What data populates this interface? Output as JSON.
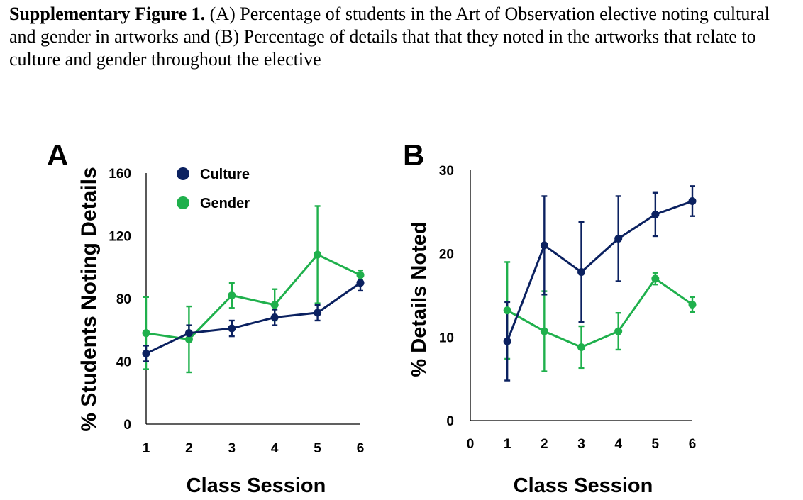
{
  "caption": {
    "label": "Supplementary Figure 1.",
    "text": " (A) Percentage of students in the Art of Observation elective noting cultural and gender in artworks and (B) Percentage of details that that they noted in the artworks that relate to culture and gender throughout the elective"
  },
  "colors": {
    "culture": "#0b2160",
    "gender": "#1fb04c"
  },
  "chart_data": [
    {
      "type": "line",
      "panel": "A",
      "xlabel": "Class Session",
      "ylabel": "% Students Noting Details",
      "x": [
        1,
        2,
        3,
        4,
        5,
        6
      ],
      "xticks": [
        "1",
        "2",
        "3",
        "4",
        "5",
        "6"
      ],
      "xlim": [
        1,
        6
      ],
      "yticks": [
        "0",
        "40",
        "80",
        "120",
        "160"
      ],
      "ylim": [
        0,
        160
      ],
      "legend": "top-left",
      "series": [
        {
          "name": "Culture",
          "color": "#0b2160",
          "values": [
            45,
            58,
            61,
            68,
            71,
            90
          ],
          "err": [
            5,
            5,
            5,
            5,
            5,
            5
          ]
        },
        {
          "name": "Gender",
          "color": "#1fb04c",
          "values": [
            58,
            54,
            82,
            76,
            108,
            95
          ],
          "err": [
            23,
            21,
            8,
            10,
            31,
            3
          ]
        }
      ]
    },
    {
      "type": "line",
      "panel": "B",
      "xlabel": "Class Session",
      "ylabel": "% Details Noted",
      "x": [
        1,
        2,
        3,
        4,
        5,
        6
      ],
      "xticks": [
        "0",
        "1",
        "2",
        "3",
        "4",
        "5",
        "6"
      ],
      "xlim": [
        0,
        6
      ],
      "yticks": [
        "0",
        "10",
        "20",
        "30"
      ],
      "ylim": [
        0,
        30
      ],
      "series": [
        {
          "name": "Culture",
          "color": "#0b2160",
          "values": [
            9.5,
            21,
            17.8,
            21.8,
            24.7,
            26.3
          ],
          "err": [
            4.7,
            5.9,
            6,
            5.1,
            2.6,
            1.8
          ]
        },
        {
          "name": "Gender",
          "color": "#1fb04c",
          "values": [
            13.2,
            10.7,
            8.8,
            10.7,
            17,
            13.9
          ],
          "err": [
            5.8,
            4.8,
            2.5,
            2.2,
            0.7,
            0.9
          ]
        }
      ]
    }
  ]
}
